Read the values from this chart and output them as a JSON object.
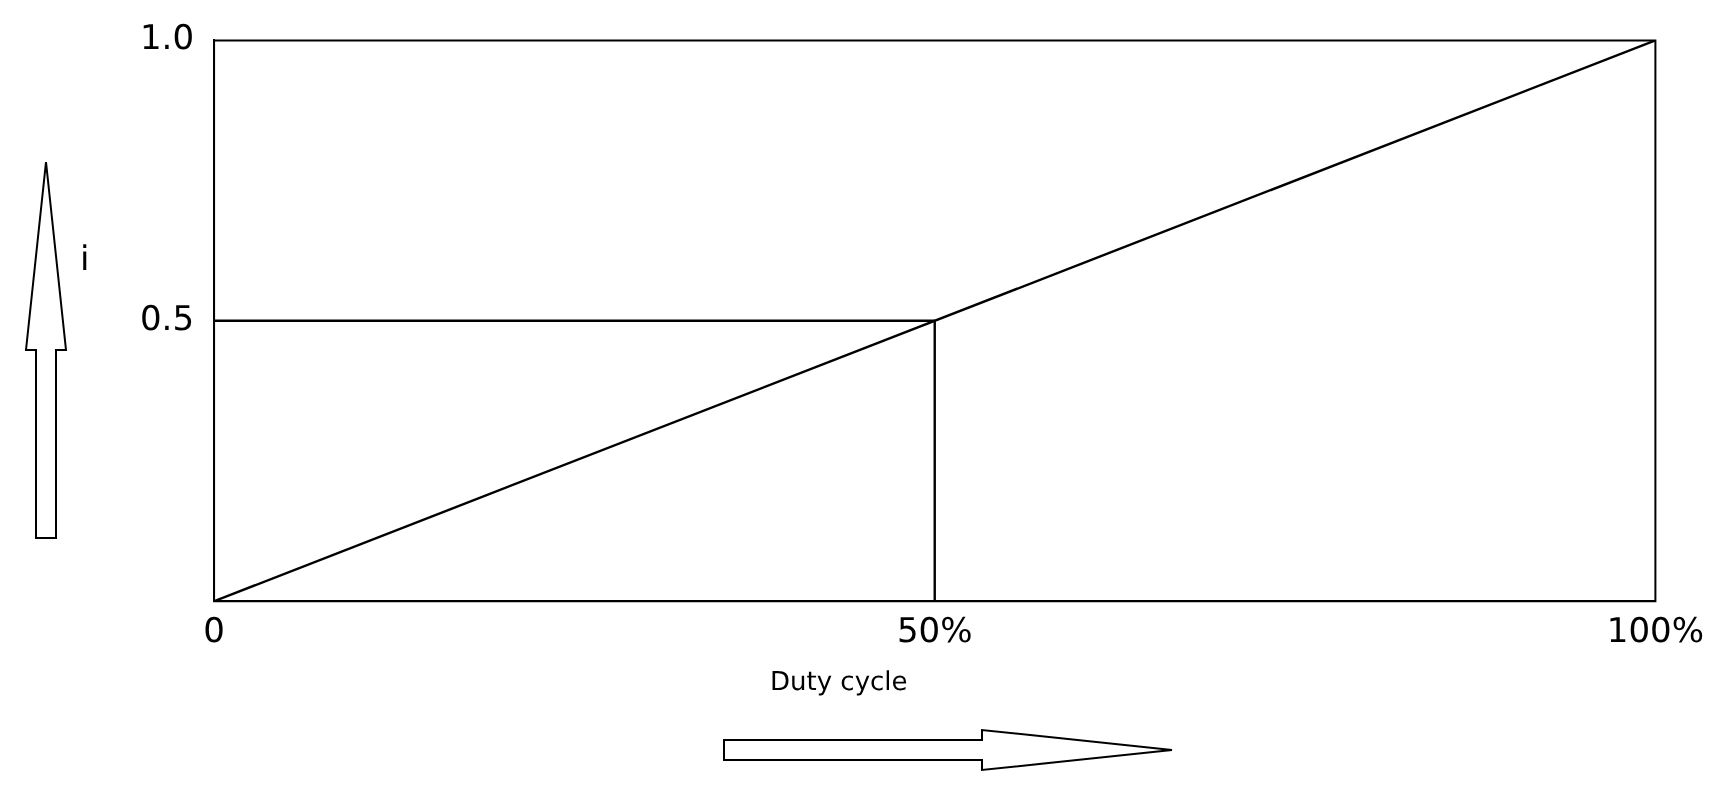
{
  "chart_data": {
    "type": "line",
    "xlabel": "Duty cycle",
    "ylabel": "i",
    "xlim": [
      0,
      100
    ],
    "ylim": [
      0,
      1
    ],
    "xticks": [
      0,
      {
        "value": 50,
        "label": "50%"
      },
      {
        "value": 100,
        "label": "100%"
      }
    ],
    "yticks": [
      0.5,
      {
        "value": 1,
        "label": "1.0"
      }
    ],
    "series": [
      {
        "color": "#000000",
        "x": [
          0,
          100
        ],
        "values": [
          0,
          1
        ]
      },
      {
        "color": "#000000",
        "x": [
          0,
          50,
          50
        ],
        "values": [
          0.5,
          0.5,
          0
        ]
      }
    ]
  }
}
